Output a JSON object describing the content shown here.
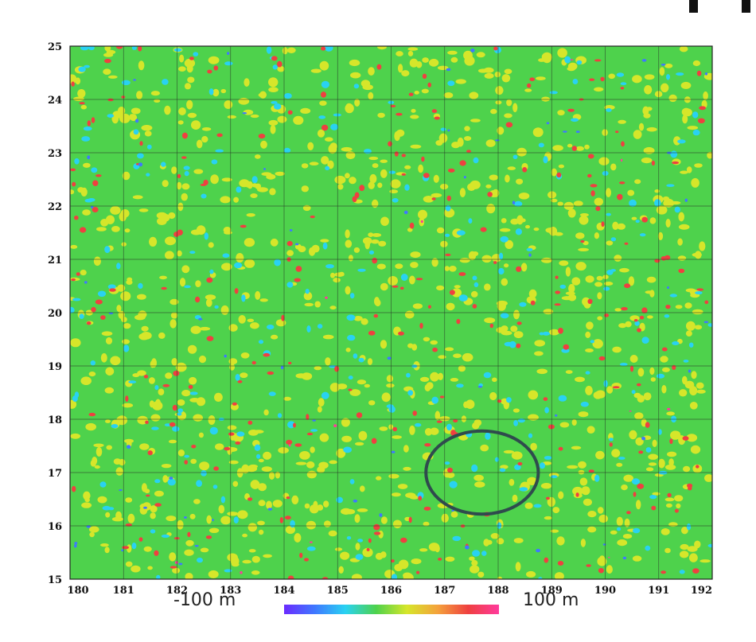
{
  "map": {
    "x_range": [
      180,
      192
    ],
    "y_range": [
      15,
      25
    ],
    "x_ticks": [
      "180",
      "181",
      "182",
      "183",
      "184",
      "185",
      "186",
      "187",
      "188",
      "189",
      "190",
      "191",
      "192"
    ],
    "y_ticks": [
      "15",
      "16",
      "17",
      "18",
      "19",
      "20",
      "21",
      "22",
      "23",
      "24",
      "25"
    ],
    "grid": true,
    "background_color": "#4ed24c",
    "highlight_ellipse": {
      "center_x": 187.7,
      "center_y": 17.0,
      "radius_x": 1.05,
      "radius_y": 0.78,
      "color": "#2f4b4d"
    }
  },
  "colorbar": {
    "min_label": "-100 m",
    "max_label": "100 m",
    "colors": [
      "#6b2bff",
      "#3f78ff",
      "#29d2f2",
      "#4ed24c",
      "#d6e62a",
      "#f4a23c",
      "#ef4040",
      "#ff3a9c"
    ]
  }
}
